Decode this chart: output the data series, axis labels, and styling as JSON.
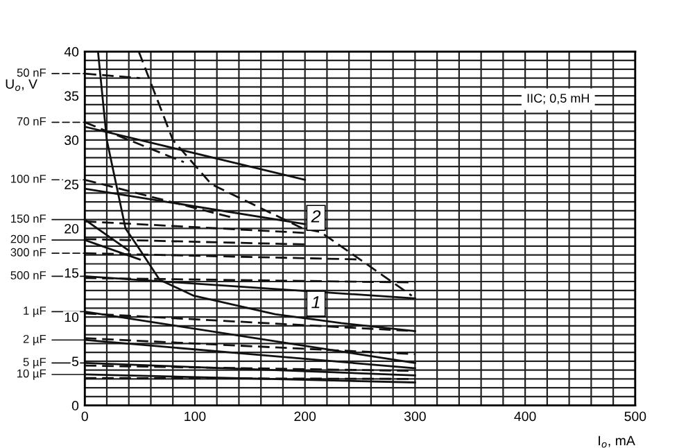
{
  "chart_data": {
    "type": "line",
    "xlabel": "I$_{o}$, mA",
    "ylabel": "U$_{o}$, V",
    "xlim": [
      0,
      500
    ],
    "ylim": [
      0,
      40
    ],
    "xticks": [
      0,
      {
        "value": 20,
        "label": null
      },
      {
        "value": 40,
        "label": null
      },
      {
        "value": 60,
        "label": null
      },
      {
        "value": 80,
        "label": null
      },
      100,
      {
        "value": 120,
        "label": null
      },
      {
        "value": 140,
        "label": null
      },
      {
        "value": 160,
        "label": null
      },
      {
        "value": 180,
        "label": null
      },
      200,
      {
        "value": 220,
        "label": null
      },
      {
        "value": 240,
        "label": null
      },
      {
        "value": 260,
        "label": null
      },
      {
        "value": 280,
        "label": null
      },
      300,
      {
        "value": 320,
        "label": null
      },
      {
        "value": 340,
        "label": null
      },
      {
        "value": 360,
        "label": null
      },
      {
        "value": 380,
        "label": null
      },
      400,
      {
        "value": 420,
        "label": null
      },
      {
        "value": 440,
        "label": null
      },
      {
        "value": 460,
        "label": null
      },
      {
        "value": 480,
        "label": null
      },
      500
    ],
    "yticks": [
      0,
      {
        "value": 1,
        "label": null
      },
      {
        "value": 2,
        "label": null
      },
      {
        "value": 3,
        "label": null
      },
      {
        "value": 4,
        "label": null
      },
      5,
      {
        "value": 6,
        "label": null
      },
      {
        "value": 7,
        "label": null
      },
      {
        "value": 8,
        "label": null
      },
      {
        "value": 9,
        "label": null
      },
      10,
      {
        "value": 11,
        "label": null
      },
      {
        "value": 12,
        "label": null
      },
      {
        "value": 13,
        "label": null
      },
      {
        "value": 14,
        "label": null
      },
      15,
      {
        "value": 16,
        "label": null
      },
      {
        "value": 17,
        "label": null
      },
      {
        "value": 18,
        "label": null
      },
      {
        "value": 19,
        "label": null
      },
      20,
      {
        "value": 21,
        "label": null
      },
      {
        "value": 22,
        "label": null
      },
      {
        "value": 23,
        "label": null
      },
      {
        "value": 24,
        "label": null
      },
      25,
      {
        "value": 26,
        "label": null
      },
      {
        "value": 27,
        "label": null
      },
      {
        "value": 28,
        "label": null
      },
      {
        "value": 29,
        "label": null
      },
      30,
      {
        "value": 31,
        "label": null
      },
      {
        "value": 32,
        "label": null
      },
      {
        "value": 33,
        "label": null
      },
      {
        "value": 34,
        "label": null
      },
      35,
      {
        "value": 36,
        "label": null
      },
      {
        "value": 37,
        "label": null
      },
      {
        "value": 38,
        "label": null
      },
      {
        "value": 39,
        "label": null
      },
      40
    ],
    "grid": true,
    "legend": "left",
    "series": [
      {
        "color": "#111111",
        "line_style": "solid",
        "x": [
          12,
          20,
          37,
          50,
          68,
          99,
          173,
          233,
          300
        ],
        "values": [
          40,
          30,
          20,
          17.6,
          14.2,
          12.4,
          10.3,
          9.3,
          8.4
        ]
      },
      {
        "color": "#111111",
        "line_style": "dashed",
        "x": [
          49,
          80,
          115,
          198,
          214,
          250,
          297
        ],
        "values": [
          40,
          30,
          25,
          20,
          19.6,
          16.5,
          12.4
        ]
      },
      {
        "name": "50 nF",
        "color": "#111111",
        "line_style": "dashed",
        "x": [
          0,
          50
        ],
        "values": [
          37.5,
          37
        ]
      },
      {
        "name": "70 nF",
        "color": "#111111",
        "line_style": "dashed",
        "x": [
          0,
          90
        ],
        "values": [
          32,
          27.5
        ]
      },
      {
        "color": "#111111",
        "line_style": "solid",
        "x": [
          0,
          200
        ],
        "values": [
          31.5,
          25.5
        ]
      },
      {
        "name": "100 nF",
        "color": "#111111",
        "line_style": "dashed",
        "x": [
          0,
          132
        ],
        "values": [
          25.5,
          21.3
        ]
      },
      {
        "color": "#111111",
        "line_style": "solid",
        "x": [
          0,
          200
        ],
        "values": [
          24.5,
          20.5
        ]
      },
      {
        "name": "150 nF",
        "color": "#111111",
        "line_style": "solid",
        "x": [
          0,
          40
        ],
        "values": [
          21,
          17.5
        ]
      },
      {
        "color": "#111111",
        "line_style": "dashed",
        "x": [
          0,
          200
        ],
        "values": [
          20.8,
          19.5
        ]
      },
      {
        "color": "#111111",
        "line_style": "dashed",
        "x": [
          0,
          200
        ],
        "values": [
          18.8,
          18.2
        ]
      },
      {
        "name": "200 nF",
        "color": "#111111",
        "line_style": "solid",
        "x": [
          0,
          50
        ],
        "values": [
          18.7,
          16.5
        ]
      },
      {
        "name": "300 nF",
        "color": "#111111",
        "line_style": "dashed",
        "x": [
          0,
          250
        ],
        "values": [
          17.2,
          16.5
        ]
      },
      {
        "name": "500 nF",
        "color": "#111111",
        "line_style": "solid",
        "x": [
          0,
          300
        ],
        "values": [
          14.6,
          12.1
        ]
      },
      {
        "color": "#111111",
        "line_style": "dashed",
        "x": [
          0,
          300
        ],
        "values": [
          14.4,
          13.9
        ]
      },
      {
        "name": "1 µF",
        "color": "#111111",
        "line_style": "solid",
        "x": [
          0,
          300
        ],
        "values": [
          10.6,
          4.8
        ]
      },
      {
        "color": "#111111",
        "line_style": "dashed",
        "x": [
          0,
          300
        ],
        "values": [
          10.4,
          8.4
        ]
      },
      {
        "name": "2 µF",
        "color": "#111111",
        "line_style": "solid",
        "x": [
          0,
          300
        ],
        "values": [
          7.4,
          4.2
        ]
      },
      {
        "color": "#111111",
        "line_style": "dashed",
        "x": [
          0,
          300
        ],
        "values": [
          7.6,
          5.8
        ]
      },
      {
        "name": "5 µF",
        "color": "#111111",
        "line_style": "solid",
        "x": [
          0,
          300
        ],
        "values": [
          4.8,
          3.4
        ]
      },
      {
        "color": "#111111",
        "line_style": "dashed",
        "x": [
          0,
          300
        ],
        "values": [
          4.5,
          3.9
        ]
      },
      {
        "name": "10 µF",
        "color": "#111111",
        "line_style": "solid",
        "x": [
          0,
          300
        ],
        "values": [
          3.5,
          2.6
        ]
      },
      {
        "color": "#111111",
        "line_style": "dashed",
        "x": [
          0,
          300
        ],
        "values": [
          3.1,
          3.0
        ]
      }
    ],
    "annotations": [
      {
        "text": "1",
        "x": 210,
        "y": 11.5
      },
      {
        "text": "2",
        "x": 210,
        "y": 21.2
      },
      "IIC; 0,5 mH"
    ]
  }
}
